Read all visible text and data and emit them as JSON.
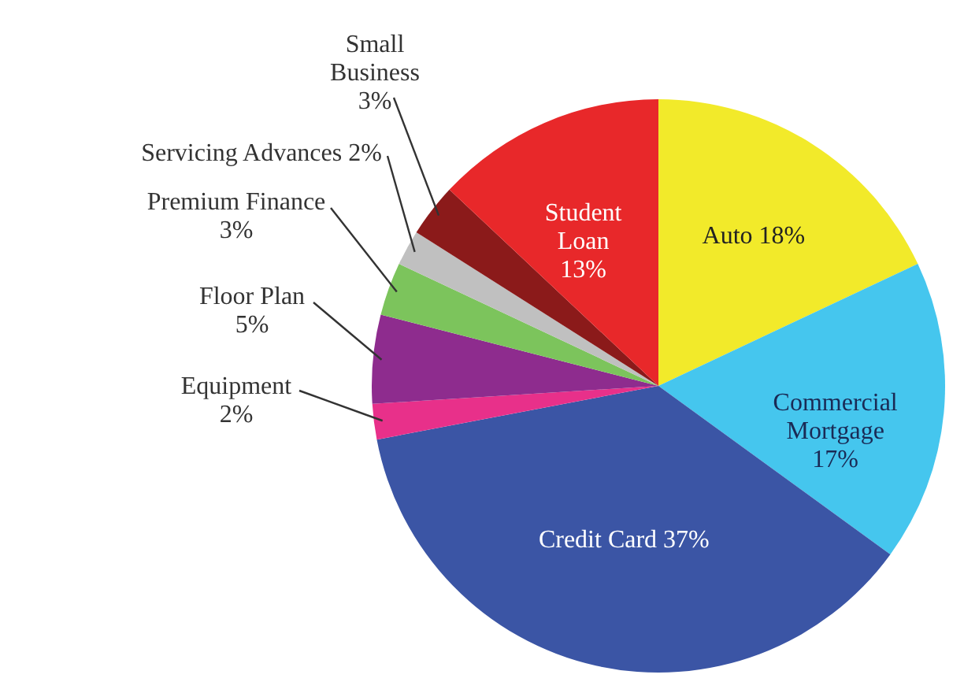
{
  "chart_data": {
    "type": "pie",
    "categories": [
      "Auto",
      "Commercial Mortgage",
      "Credit Card",
      "Equipment",
      "Floor Plan",
      "Premium Finance",
      "Servicing Advances",
      "Small Business",
      "Student Loan"
    ],
    "values": [
      18,
      17,
      37,
      2,
      5,
      3,
      2,
      3,
      13
    ],
    "colors": [
      "#f2ea2a",
      "#45c6ee",
      "#3b55a5",
      "#e8308a",
      "#8e2c8e",
      "#7cc45c",
      "#c0c0c0",
      "#8b1a1a",
      "#e8282a"
    ],
    "value_labels": [
      "18%",
      "17%",
      "37%",
      "2%",
      "5%",
      "3%",
      "2%",
      "3%",
      "13%"
    ]
  }
}
